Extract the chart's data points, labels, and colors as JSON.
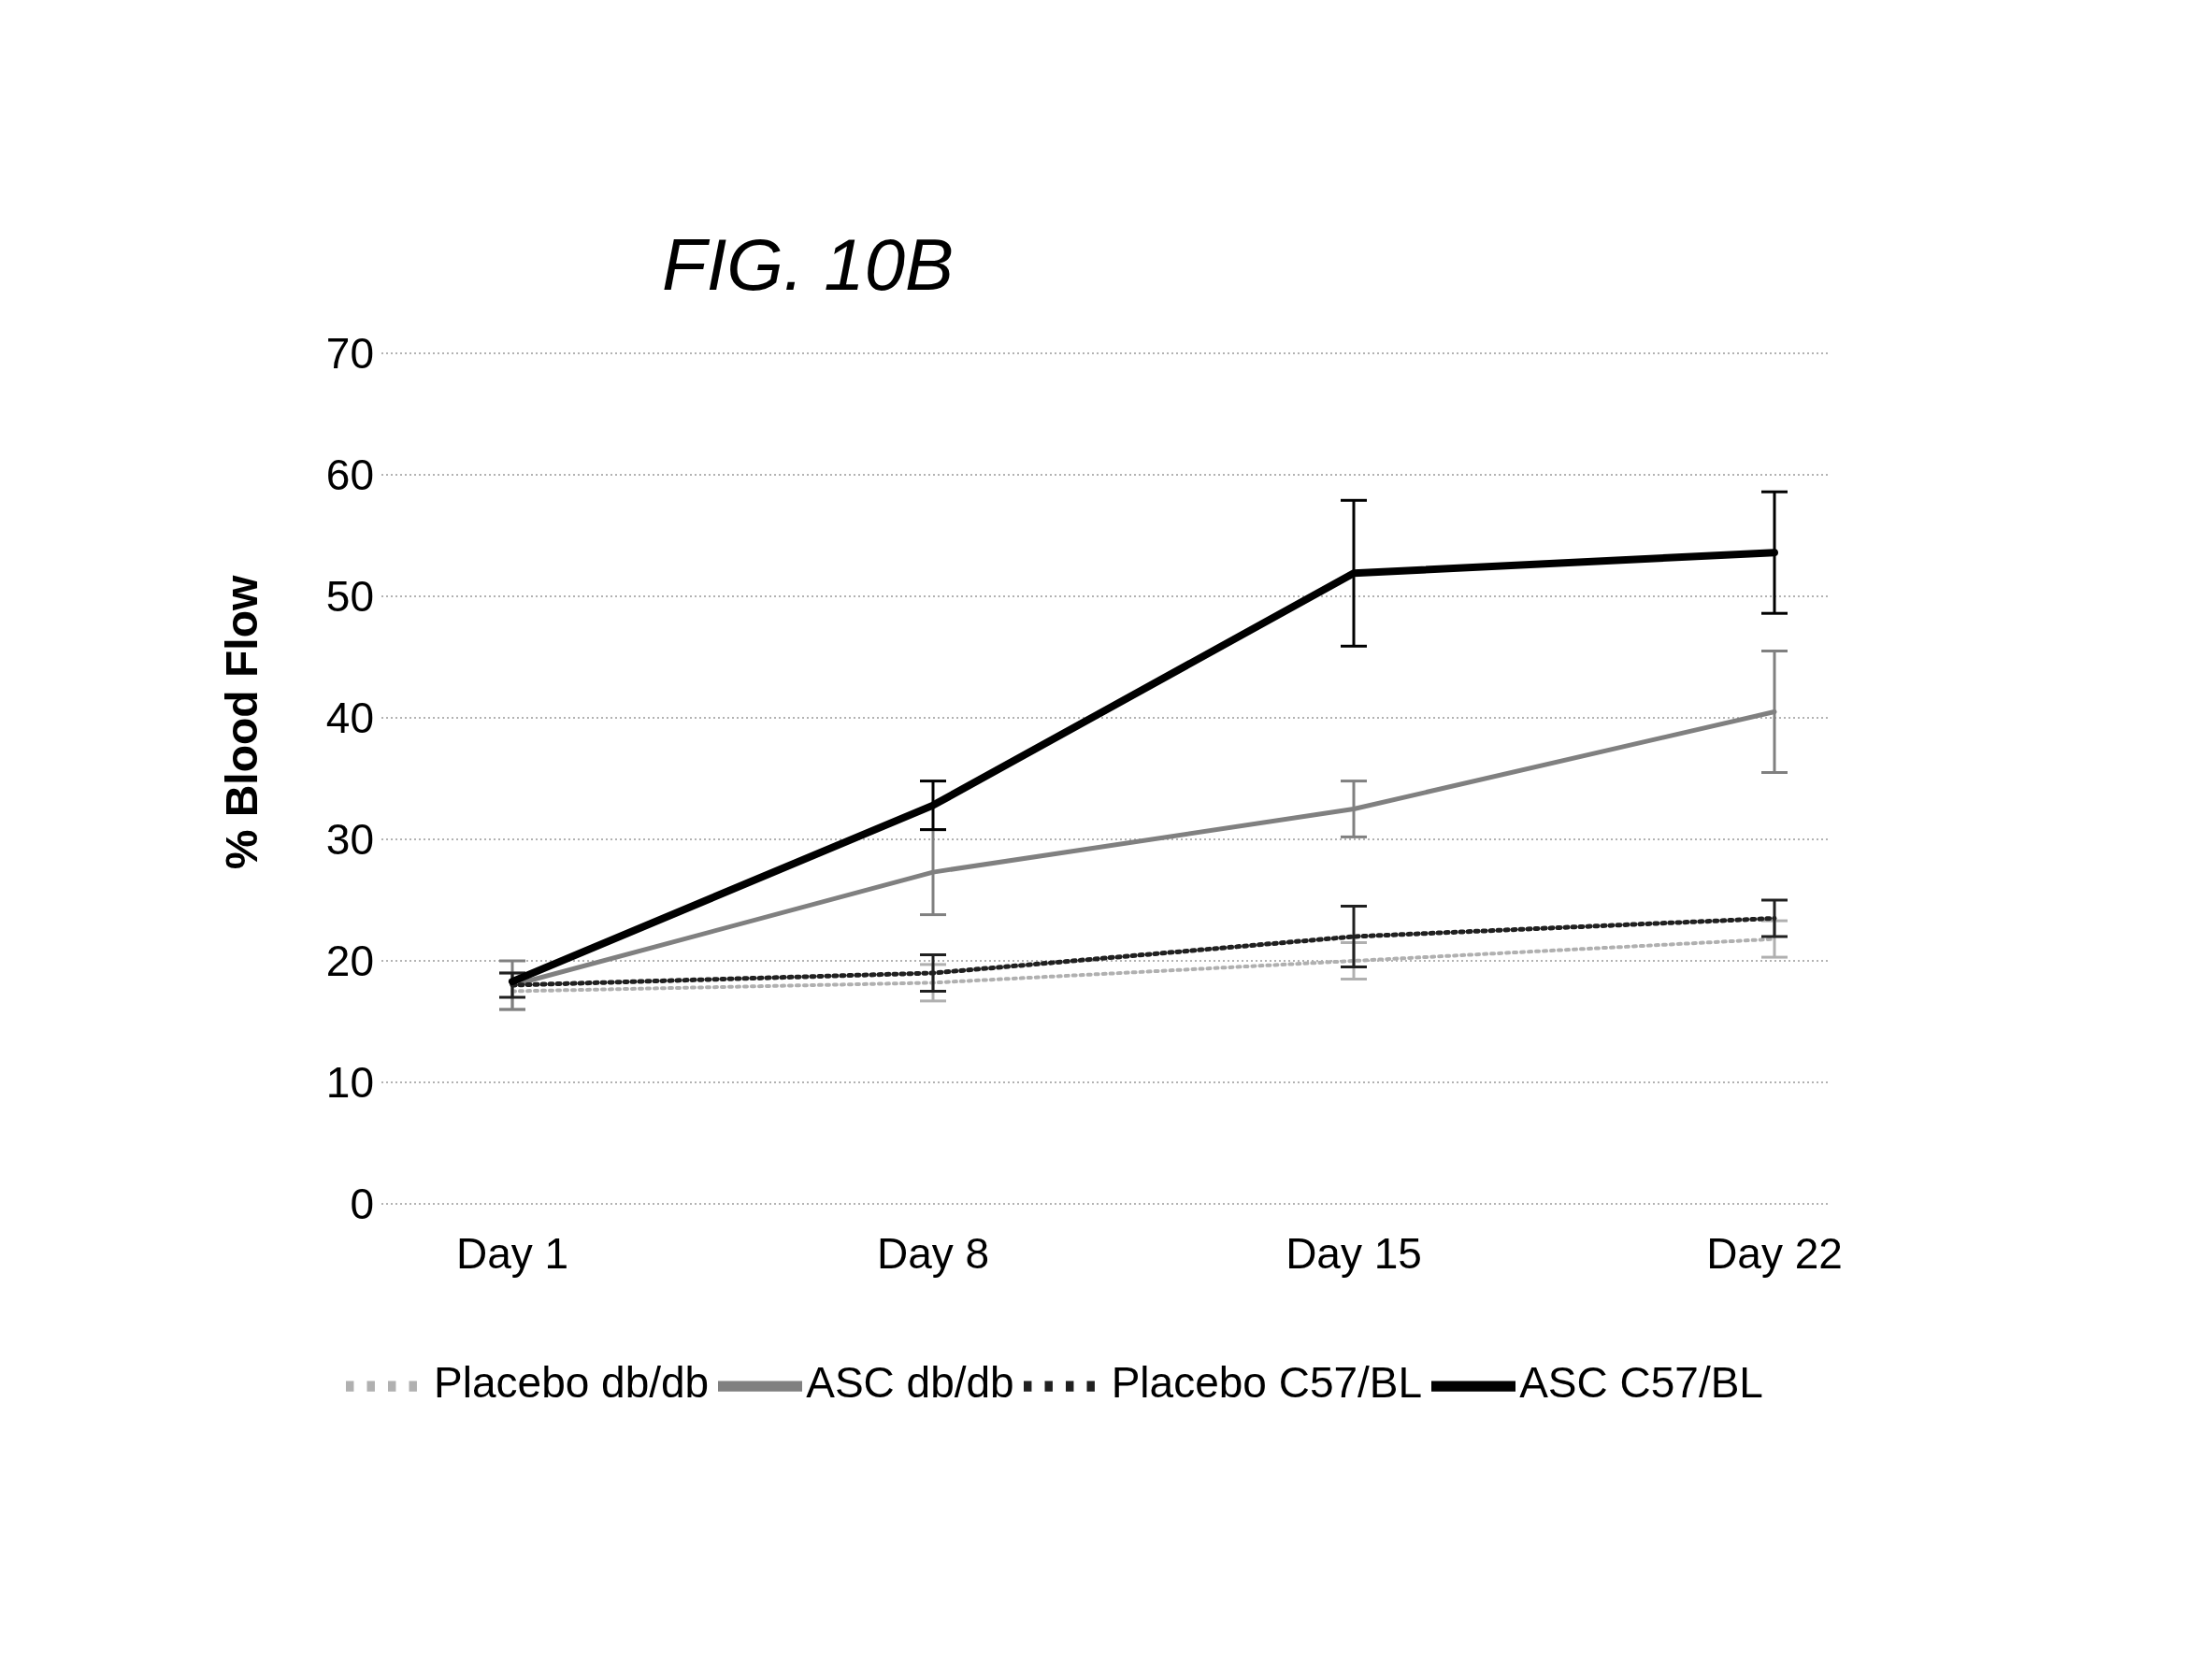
{
  "chart_data": {
    "type": "line",
    "title": "FIG. 10B",
    "ylabel": "% Blood Flow",
    "categories": [
      "Day 1",
      "Day 8",
      "Day 15",
      "Day 22"
    ],
    "ylim": [
      0,
      70
    ],
    "yticks": [
      0,
      10,
      20,
      30,
      40,
      50,
      60,
      70
    ],
    "grid": "y",
    "legend": "bottom",
    "marker": "none",
    "series": [
      {
        "name": "Placebo db/db",
        "color": "#b0b0b0",
        "line_style": "dotted",
        "values": [
          17.5,
          18.2,
          20,
          21.8
        ],
        "errors": [
          1.5,
          1.5,
          1.5,
          1.5
        ]
      },
      {
        "name": "ASC db/db",
        "color": "#808080",
        "line_style": "solid",
        "values": [
          18,
          27.3,
          32.5,
          40.5
        ],
        "errors": [
          2,
          3.5,
          2.3,
          5
        ]
      },
      {
        "name": "Placebo C57/BL",
        "color": "#202020",
        "line_style": "dotted",
        "values": [
          18,
          19,
          22,
          23.5
        ],
        "errors": [
          1,
          1.5,
          2.5,
          1.5
        ]
      },
      {
        "name": "ASC C57/BL",
        "color": "#000000",
        "line_style": "solid",
        "values": [
          18.3,
          32.8,
          51.9,
          53.6
        ],
        "errors": [
          null,
          2,
          6,
          5
        ]
      }
    ]
  }
}
